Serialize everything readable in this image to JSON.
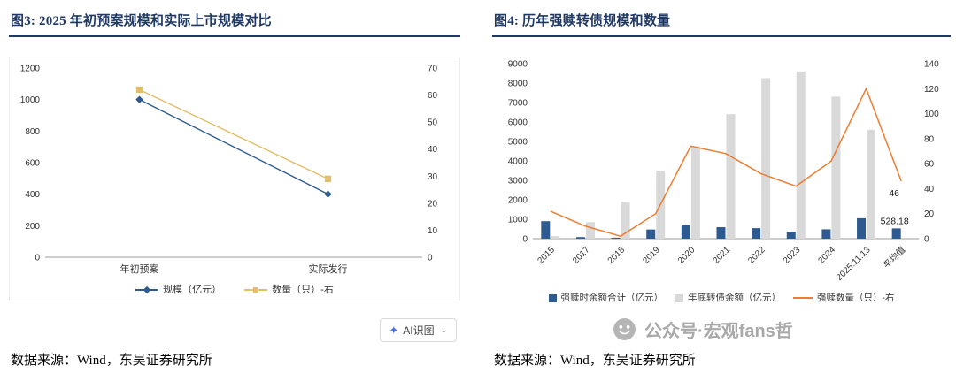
{
  "panels": [
    {
      "title": "图3: 2025 年初预案规模和实际上市规模对比",
      "source": "数据来源：Wind，东吴证券研究所"
    },
    {
      "title": "图4: 历年强赎转债规模和数量",
      "source": "数据来源：Wind，东吴证券研究所"
    }
  ],
  "ai_button": {
    "label": "AI识图",
    "caret": "⌄"
  },
  "watermark": {
    "text": "公众号·宏观fans哲"
  },
  "theme": {
    "title_color": "#1F3864",
    "rule_color": "#1F3864",
    "axis_text_color": "#333333",
    "axis_line_color": "#9b9b9b"
  },
  "chart_data": [
    {
      "type": "line",
      "title": "2025年初预案规模和实际上市规模对比",
      "categories": [
        "年初预案",
        "实际发行"
      ],
      "series": [
        {
          "name": "规模（亿元）",
          "axis": "left",
          "marker": "diamond",
          "color": "#2E5B8F",
          "values": [
            1000,
            400
          ]
        },
        {
          "name": "数量（只）-右",
          "axis": "right",
          "marker": "square",
          "color": "#E3BE69",
          "values": [
            62,
            29
          ]
        }
      ],
      "left_axis": {
        "min": 0,
        "max": 1200,
        "step": 200
      },
      "right_axis": {
        "min": 0,
        "max": 70,
        "step": 10
      },
      "grid": false,
      "legend_position": "bottom"
    },
    {
      "type": "bar-line-combo",
      "title": "历年强赎转债规模和数量",
      "categories": [
        "2015",
        "2017",
        "2018",
        "2019",
        "2020",
        "2021",
        "2022",
        "2023",
        "2024",
        "2025.11.13",
        "平均值"
      ],
      "series": [
        {
          "name": "强赎时余额合计（亿元）",
          "type": "bar",
          "axis": "left",
          "color": "#2E5B8F",
          "values": [
            900,
            80,
            50,
            470,
            700,
            590,
            540,
            360,
            480,
            1050,
            528.18
          ]
        },
        {
          "name": "年底转债余额（亿元）",
          "type": "bar",
          "axis": "left",
          "color": "#D9D9D9",
          "values": [
            130,
            850,
            1900,
            3500,
            4750,
            6400,
            8250,
            8600,
            7300,
            5600,
            0
          ]
        },
        {
          "name": "强赎数量（只）-右",
          "type": "line",
          "axis": "right",
          "color": "#ED7D31",
          "values": [
            22,
            10,
            2,
            20,
            74,
            68,
            52,
            42,
            62,
            120,
            46
          ]
        }
      ],
      "left_axis": {
        "min": 0,
        "max": 9000,
        "step": 1000
      },
      "right_axis": {
        "min": 0,
        "max": 140,
        "step": 20
      },
      "data_labels": [
        {
          "series": 0,
          "index": 10,
          "text": "528.18"
        },
        {
          "series": 2,
          "index": 10,
          "text": "46"
        }
      ],
      "grid": false,
      "legend_position": "bottom"
    }
  ]
}
